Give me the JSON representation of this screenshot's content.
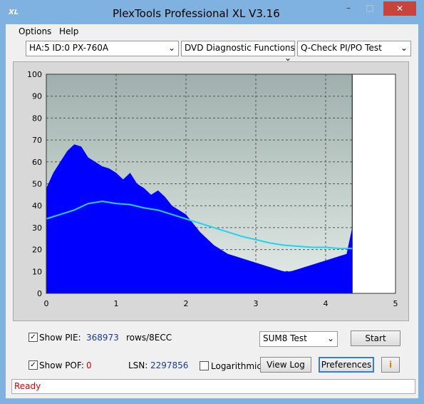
{
  "window": {
    "logo": "XL",
    "title": "PlexTools Professional XL V3.16"
  },
  "menu": [
    "Options",
    "Help"
  ],
  "toolbar": [
    "HA:5 ID:0  PX-760A",
    "DVD Diagnostic Functions",
    "Q-Check PI/PO Test"
  ],
  "chart": {
    "type": "area",
    "xlim": [
      0,
      5
    ],
    "ylim": [
      0,
      100
    ],
    "xticks": [
      0,
      1,
      2,
      3,
      4,
      5
    ],
    "yticks": [
      0,
      10,
      20,
      30,
      40,
      50,
      60,
      70,
      80,
      90,
      100
    ],
    "grid": true,
    "series": [
      {
        "color": "#0000ff",
        "x": [
          0,
          0.1,
          0.2,
          0.3,
          0.4,
          0.5,
          0.6,
          0.7,
          0.8,
          0.9,
          1.0,
          1.1,
          1.2,
          1.3,
          1.4,
          1.5,
          1.6,
          1.7,
          1.8,
          1.9,
          2.0,
          2.1,
          2.2,
          2.3,
          2.4,
          2.5,
          2.6,
          2.7,
          2.8,
          2.9,
          3.0,
          3.1,
          3.2,
          3.3,
          3.4,
          3.5,
          3.6,
          3.7,
          3.8,
          3.9,
          4.0,
          4.1,
          4.2,
          4.3,
          4.38
        ],
        "values": [
          48,
          55,
          60,
          65,
          68,
          67,
          62,
          60,
          58,
          57,
          55,
          52,
          55,
          50,
          48,
          45,
          47,
          44,
          40,
          38,
          36,
          32,
          28,
          25,
          22,
          20,
          18,
          17,
          16,
          15,
          14,
          13,
          12,
          11,
          10,
          10,
          11,
          12,
          13,
          14,
          15,
          16,
          17,
          18,
          30
        ]
      },
      {
        "color": "#22d3ee",
        "x": [
          0,
          0.2,
          0.4,
          0.6,
          0.8,
          1.0,
          1.2,
          1.4,
          1.6,
          1.8,
          2.0,
          2.2,
          2.4,
          2.6,
          2.8,
          3.0,
          3.2,
          3.4,
          3.6,
          3.8,
          4.0,
          4.2,
          4.38
        ],
        "values": [
          34,
          36,
          38,
          41,
          42,
          41,
          40.5,
          39,
          38,
          36,
          34,
          32,
          30,
          28,
          26,
          24.5,
          23,
          22,
          21.5,
          21,
          21,
          20.5,
          20.5
        ]
      }
    ]
  },
  "controls": {
    "show_pie": "Show PIE:",
    "pie_value": "368973",
    "pie_unit": "rows/8ECC",
    "test": "SUM8 Test",
    "start": "Start",
    "show_pof": "Show POF:",
    "pof_value": "0",
    "lsn_label": "LSN:",
    "lsn_value": "2297856",
    "log": "Logarithmic",
    "view_log": "View Log",
    "preferences": "Preferences"
  },
  "status": "Ready"
}
